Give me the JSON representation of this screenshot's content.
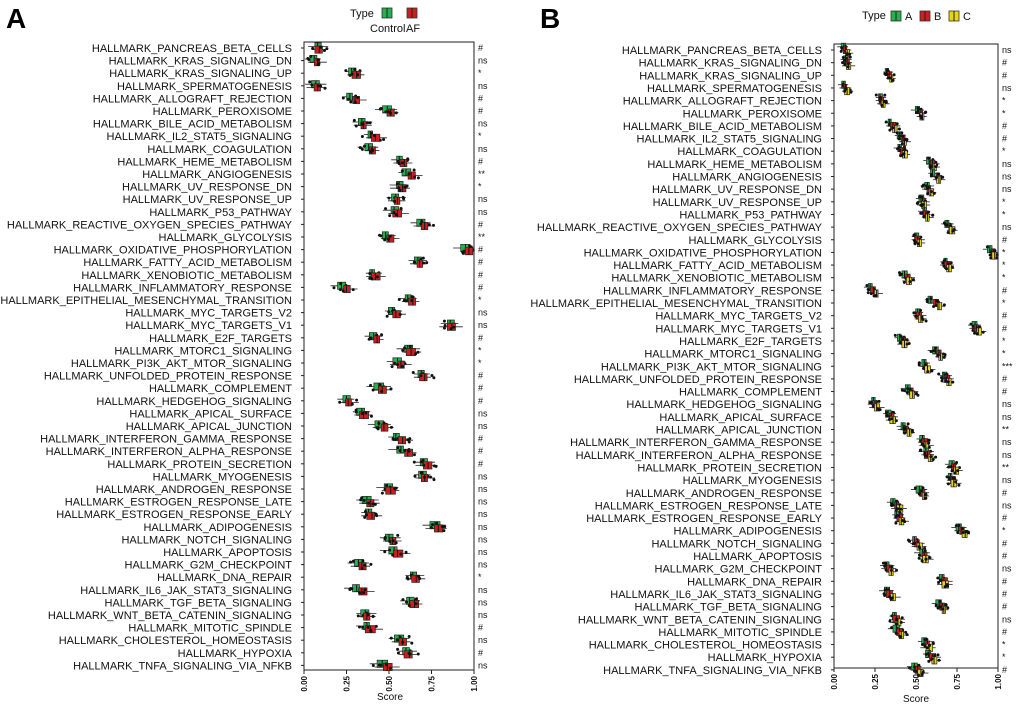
{
  "chart_data": [
    {
      "panel": "A",
      "type": "boxplot",
      "xlabel": "Score",
      "xlim": [
        0,
        1
      ],
      "x_ticks": [
        "0.00",
        "0.25",
        "0.50",
        "0.75",
        "1.00"
      ],
      "legend": {
        "title": "Type",
        "entries": [
          {
            "name": "Control",
            "color": "#22b14c"
          },
          {
            "name": "AF",
            "color": "#c8201e"
          }
        ]
      },
      "categories": [
        "HALLMARK_PANCREAS_BETA_CELLS",
        "HALLMARK_KRAS_SIGNALING_DN",
        "HALLMARK_KRAS_SIGNALING_UP",
        "HALLMARK_SPERMATOGENESIS",
        "HALLMARK_ALLOGRAFT_REJECTION",
        "HALLMARK_PEROXISOME",
        "HALLMARK_BILE_ACID_METABOLISM",
        "HALLMARK_IL2_STAT5_SIGNALING",
        "HALLMARK_COAGULATION",
        "HALLMARK_HEME_METABOLISM",
        "HALLMARK_ANGIOGENESIS",
        "HALLMARK_UV_RESPONSE_DN",
        "HALLMARK_UV_RESPONSE_UP",
        "HALLMARK_P53_PATHWAY",
        "HALLMARK_REACTIVE_OXYGEN_SPECIES_PATHWAY",
        "HALLMARK_GLYCOLYSIS",
        "HALLMARK_OXIDATIVE_PHOSPHORYLATION",
        "HALLMARK_FATTY_ACID_METABOLISM",
        "HALLMARK_XENOBIOTIC_METABOLISM",
        "HALLMARK_INFLAMMATORY_RESPONSE",
        "HALLMARK_EPITHELIAL_MESENCHYMAL_TRANSITION",
        "HALLMARK_MYC_TARGETS_V2",
        "HALLMARK_MYC_TARGETS_V1",
        "HALLMARK_E2F_TARGETS",
        "HALLMARK_MTORC1_SIGNALING",
        "HALLMARK_PI3K_AKT_MTOR_SIGNALING",
        "HALLMARK_UNFOLDED_PROTEIN_RESPONSE",
        "HALLMARK_COMPLEMENT",
        "HALLMARK_HEDGEHOG_SIGNALING",
        "HALLMARK_APICAL_SURFACE",
        "HALLMARK_APICAL_JUNCTION",
        "HALLMARK_INTERFERON_GAMMA_RESPONSE",
        "HALLMARK_INTERFERON_ALPHA_RESPONSE",
        "HALLMARK_PROTEIN_SECRETION",
        "HALLMARK_MYOGENESIS",
        "HALLMARK_ANDROGEN_RESPONSE",
        "HALLMARK_ESTROGEN_RESPONSE_LATE",
        "HALLMARK_ESTROGEN_RESPONSE_EARLY",
        "HALLMARK_ADIPOGENESIS",
        "HALLMARK_NOTCH_SIGNALING",
        "HALLMARK_APOPTOSIS",
        "HALLMARK_G2M_CHECKPOINT",
        "HALLMARK_DNA_REPAIR",
        "HALLMARK_IL6_JAK_STAT3_SIGNALING",
        "HALLMARK_TGF_BETA_SIGNALING",
        "HALLMARK_WNT_BETA_CATENIN_SIGNALING",
        "HALLMARK_MITOTIC_SPINDLE",
        "HALLMARK_CHOLESTEROL_HOMEOSTASIS",
        "HALLMARK_HYPOXIA",
        "HALLMARK_TNFA_SIGNALING_VIA_NFKB"
      ],
      "significance": [
        "#",
        "ns",
        "*",
        "ns",
        "#",
        "#",
        "ns",
        "*",
        "ns",
        "#",
        "**",
        "*",
        "ns",
        "ns",
        "#",
        "**",
        "#",
        "#",
        "#",
        "#",
        "*",
        "ns",
        "ns",
        "#",
        "*",
        "*",
        "#",
        "#",
        "#",
        "ns",
        "ns",
        "#",
        "#",
        "#",
        "ns",
        "ns",
        "ns",
        "ns",
        "ns",
        "ns",
        "ns",
        "ns",
        "*",
        "ns",
        "ns",
        "ns",
        "#",
        "ns",
        "#",
        "ns"
      ],
      "series": [
        {
          "name": "Control",
          "medians": [
            0.08,
            0.06,
            0.28,
            0.07,
            0.27,
            0.49,
            0.34,
            0.39,
            0.38,
            0.56,
            0.6,
            0.56,
            0.54,
            0.53,
            0.69,
            0.48,
            0.95,
            0.67,
            0.4,
            0.22,
            0.61,
            0.52,
            0.86,
            0.41,
            0.61,
            0.55,
            0.69,
            0.44,
            0.25,
            0.34,
            0.44,
            0.54,
            0.57,
            0.7,
            0.7,
            0.49,
            0.37,
            0.38,
            0.77,
            0.5,
            0.53,
            0.32,
            0.64,
            0.31,
            0.62,
            0.36,
            0.37,
            0.56,
            0.6,
            0.46
          ]
        },
        {
          "name": "AF",
          "medians": [
            0.09,
            0.08,
            0.31,
            0.08,
            0.3,
            0.51,
            0.35,
            0.42,
            0.4,
            0.59,
            0.63,
            0.58,
            0.55,
            0.55,
            0.71,
            0.5,
            0.97,
            0.68,
            0.42,
            0.25,
            0.64,
            0.54,
            0.87,
            0.43,
            0.63,
            0.57,
            0.71,
            0.46,
            0.26,
            0.35,
            0.47,
            0.58,
            0.61,
            0.73,
            0.71,
            0.51,
            0.39,
            0.4,
            0.79,
            0.52,
            0.55,
            0.34,
            0.66,
            0.34,
            0.65,
            0.37,
            0.39,
            0.58,
            0.62,
            0.49
          ]
        }
      ]
    },
    {
      "panel": "B",
      "type": "boxplot",
      "xlabel": "Score",
      "xlim": [
        0,
        1
      ],
      "x_ticks": [
        "0.00",
        "0.25",
        "0.50",
        "0.75",
        "1.00"
      ],
      "legend": {
        "title": "Type",
        "entries": [
          {
            "name": "A",
            "color": "#22b14c"
          },
          {
            "name": "B",
            "color": "#c8201e"
          },
          {
            "name": "C",
            "color": "#e8d417"
          }
        ]
      },
      "categories": [
        "HALLMARK_PANCREAS_BETA_CELLS",
        "HALLMARK_KRAS_SIGNALING_DN",
        "HALLMARK_KRAS_SIGNALING_UP",
        "HALLMARK_SPERMATOGENESIS",
        "HALLMARK_ALLOGRAFT_REJECTION",
        "HALLMARK_PEROXISOME",
        "HALLMARK_BILE_ACID_METABOLISM",
        "HALLMARK_IL2_STAT5_SIGNALING",
        "HALLMARK_COAGULATION",
        "HALLMARK_HEME_METABOLISM",
        "HALLMARK_ANGIOGENESIS",
        "HALLMARK_UV_RESPONSE_DN",
        "HALLMARK_UV_RESPONSE_UP",
        "HALLMARK_P53_PATHWAY",
        "HALLMARK_REACTIVE_OXYGEN_SPECIES_PATHWAY",
        "HALLMARK_GLYCOLYSIS",
        "HALLMARK_OXIDATIVE_PHOSPHORYLATION",
        "HALLMARK_FATTY_ACID_METABOLISM",
        "HALLMARK_XENOBIOTIC_METABOLISM",
        "HALLMARK_INFLAMMATORY_RESPONSE",
        "HALLMARK_EPITHELIAL_MESENCHYMAL_TRANSITION",
        "HALLMARK_MYC_TARGETS_V2",
        "HALLMARK_MYC_TARGETS_V1",
        "HALLMARK_E2F_TARGETS",
        "HALLMARK_MTORC1_SIGNALING",
        "HALLMARK_PI3K_AKT_MTOR_SIGNALING",
        "HALLMARK_UNFOLDED_PROTEIN_RESPONSE",
        "HALLMARK_COMPLEMENT",
        "HALLMARK_HEDGEHOG_SIGNALING",
        "HALLMARK_APICAL_SURFACE",
        "HALLMARK_APICAL_JUNCTION",
        "HALLMARK_INTERFERON_GAMMA_RESPONSE",
        "HALLMARK_INTERFERON_ALPHA_RESPONSE",
        "HALLMARK_PROTEIN_SECRETION",
        "HALLMARK_MYOGENESIS",
        "HALLMARK_ANDROGEN_RESPONSE",
        "HALLMARK_ESTROGEN_RESPONSE_LATE",
        "HALLMARK_ESTROGEN_RESPONSE_EARLY",
        "HALLMARK_ADIPOGENESIS",
        "HALLMARK_NOTCH_SIGNALING",
        "HALLMARK_APOPTOSIS",
        "HALLMARK_G2M_CHECKPOINT",
        "HALLMARK_DNA_REPAIR",
        "HALLMARK_IL6_JAK_STAT3_SIGNALING",
        "HALLMARK_TGF_BETA_SIGNALING",
        "HALLMARK_WNT_BETA_CATENIN_SIGNALING",
        "HALLMARK_MITOTIC_SPINDLE",
        "HALLMARK_CHOLESTEROL_HOMEOSTASIS",
        "HALLMARK_HYPOXIA",
        "HALLMARK_TNFA_SIGNALING_VIA_NFKB"
      ],
      "significance": [
        "ns",
        "#",
        "#",
        "ns",
        "*",
        "*",
        "#",
        "#",
        "*",
        "ns",
        "ns",
        "ns",
        "*",
        "*",
        "ns",
        "#",
        "*",
        "*",
        "*",
        "#",
        "*",
        "#",
        "#",
        "*",
        "*",
        "***",
        "#",
        "#",
        "ns",
        "ns",
        "**",
        "ns",
        "ns",
        "**",
        "ns",
        "#",
        "ns",
        "#",
        "*",
        "#",
        "#",
        "ns",
        "#",
        "#",
        "#",
        "ns",
        "#",
        "*",
        "*",
        "#"
      ],
      "series": [
        {
          "name": "A",
          "medians": [
            0.06,
            0.07,
            0.32,
            0.06,
            0.28,
            0.51,
            0.34,
            0.4,
            0.4,
            0.58,
            0.6,
            0.57,
            0.53,
            0.55,
            0.69,
            0.5,
            0.95,
            0.68,
            0.43,
            0.22,
            0.59,
            0.51,
            0.86,
            0.4,
            0.62,
            0.55,
            0.67,
            0.45,
            0.24,
            0.33,
            0.42,
            0.54,
            0.56,
            0.72,
            0.71,
            0.52,
            0.36,
            0.38,
            0.76,
            0.49,
            0.54,
            0.32,
            0.66,
            0.32,
            0.64,
            0.37,
            0.38,
            0.55,
            0.58,
            0.49
          ]
        },
        {
          "name": "B",
          "medians": [
            0.07,
            0.08,
            0.34,
            0.07,
            0.29,
            0.53,
            0.36,
            0.42,
            0.42,
            0.6,
            0.63,
            0.58,
            0.54,
            0.56,
            0.71,
            0.51,
            0.97,
            0.69,
            0.45,
            0.24,
            0.62,
            0.52,
            0.87,
            0.42,
            0.64,
            0.56,
            0.69,
            0.47,
            0.25,
            0.35,
            0.44,
            0.55,
            0.57,
            0.73,
            0.72,
            0.54,
            0.38,
            0.4,
            0.78,
            0.51,
            0.55,
            0.34,
            0.67,
            0.34,
            0.66,
            0.38,
            0.4,
            0.57,
            0.6,
            0.51
          ]
        },
        {
          "name": "C",
          "medians": [
            0.08,
            0.09,
            0.35,
            0.08,
            0.3,
            0.54,
            0.37,
            0.43,
            0.43,
            0.61,
            0.64,
            0.59,
            0.55,
            0.57,
            0.72,
            0.52,
            0.98,
            0.7,
            0.46,
            0.26,
            0.64,
            0.53,
            0.88,
            0.43,
            0.65,
            0.57,
            0.7,
            0.48,
            0.26,
            0.36,
            0.46,
            0.56,
            0.59,
            0.74,
            0.73,
            0.55,
            0.4,
            0.41,
            0.8,
            0.52,
            0.56,
            0.35,
            0.68,
            0.36,
            0.67,
            0.39,
            0.41,
            0.58,
            0.61,
            0.53
          ]
        }
      ]
    }
  ]
}
